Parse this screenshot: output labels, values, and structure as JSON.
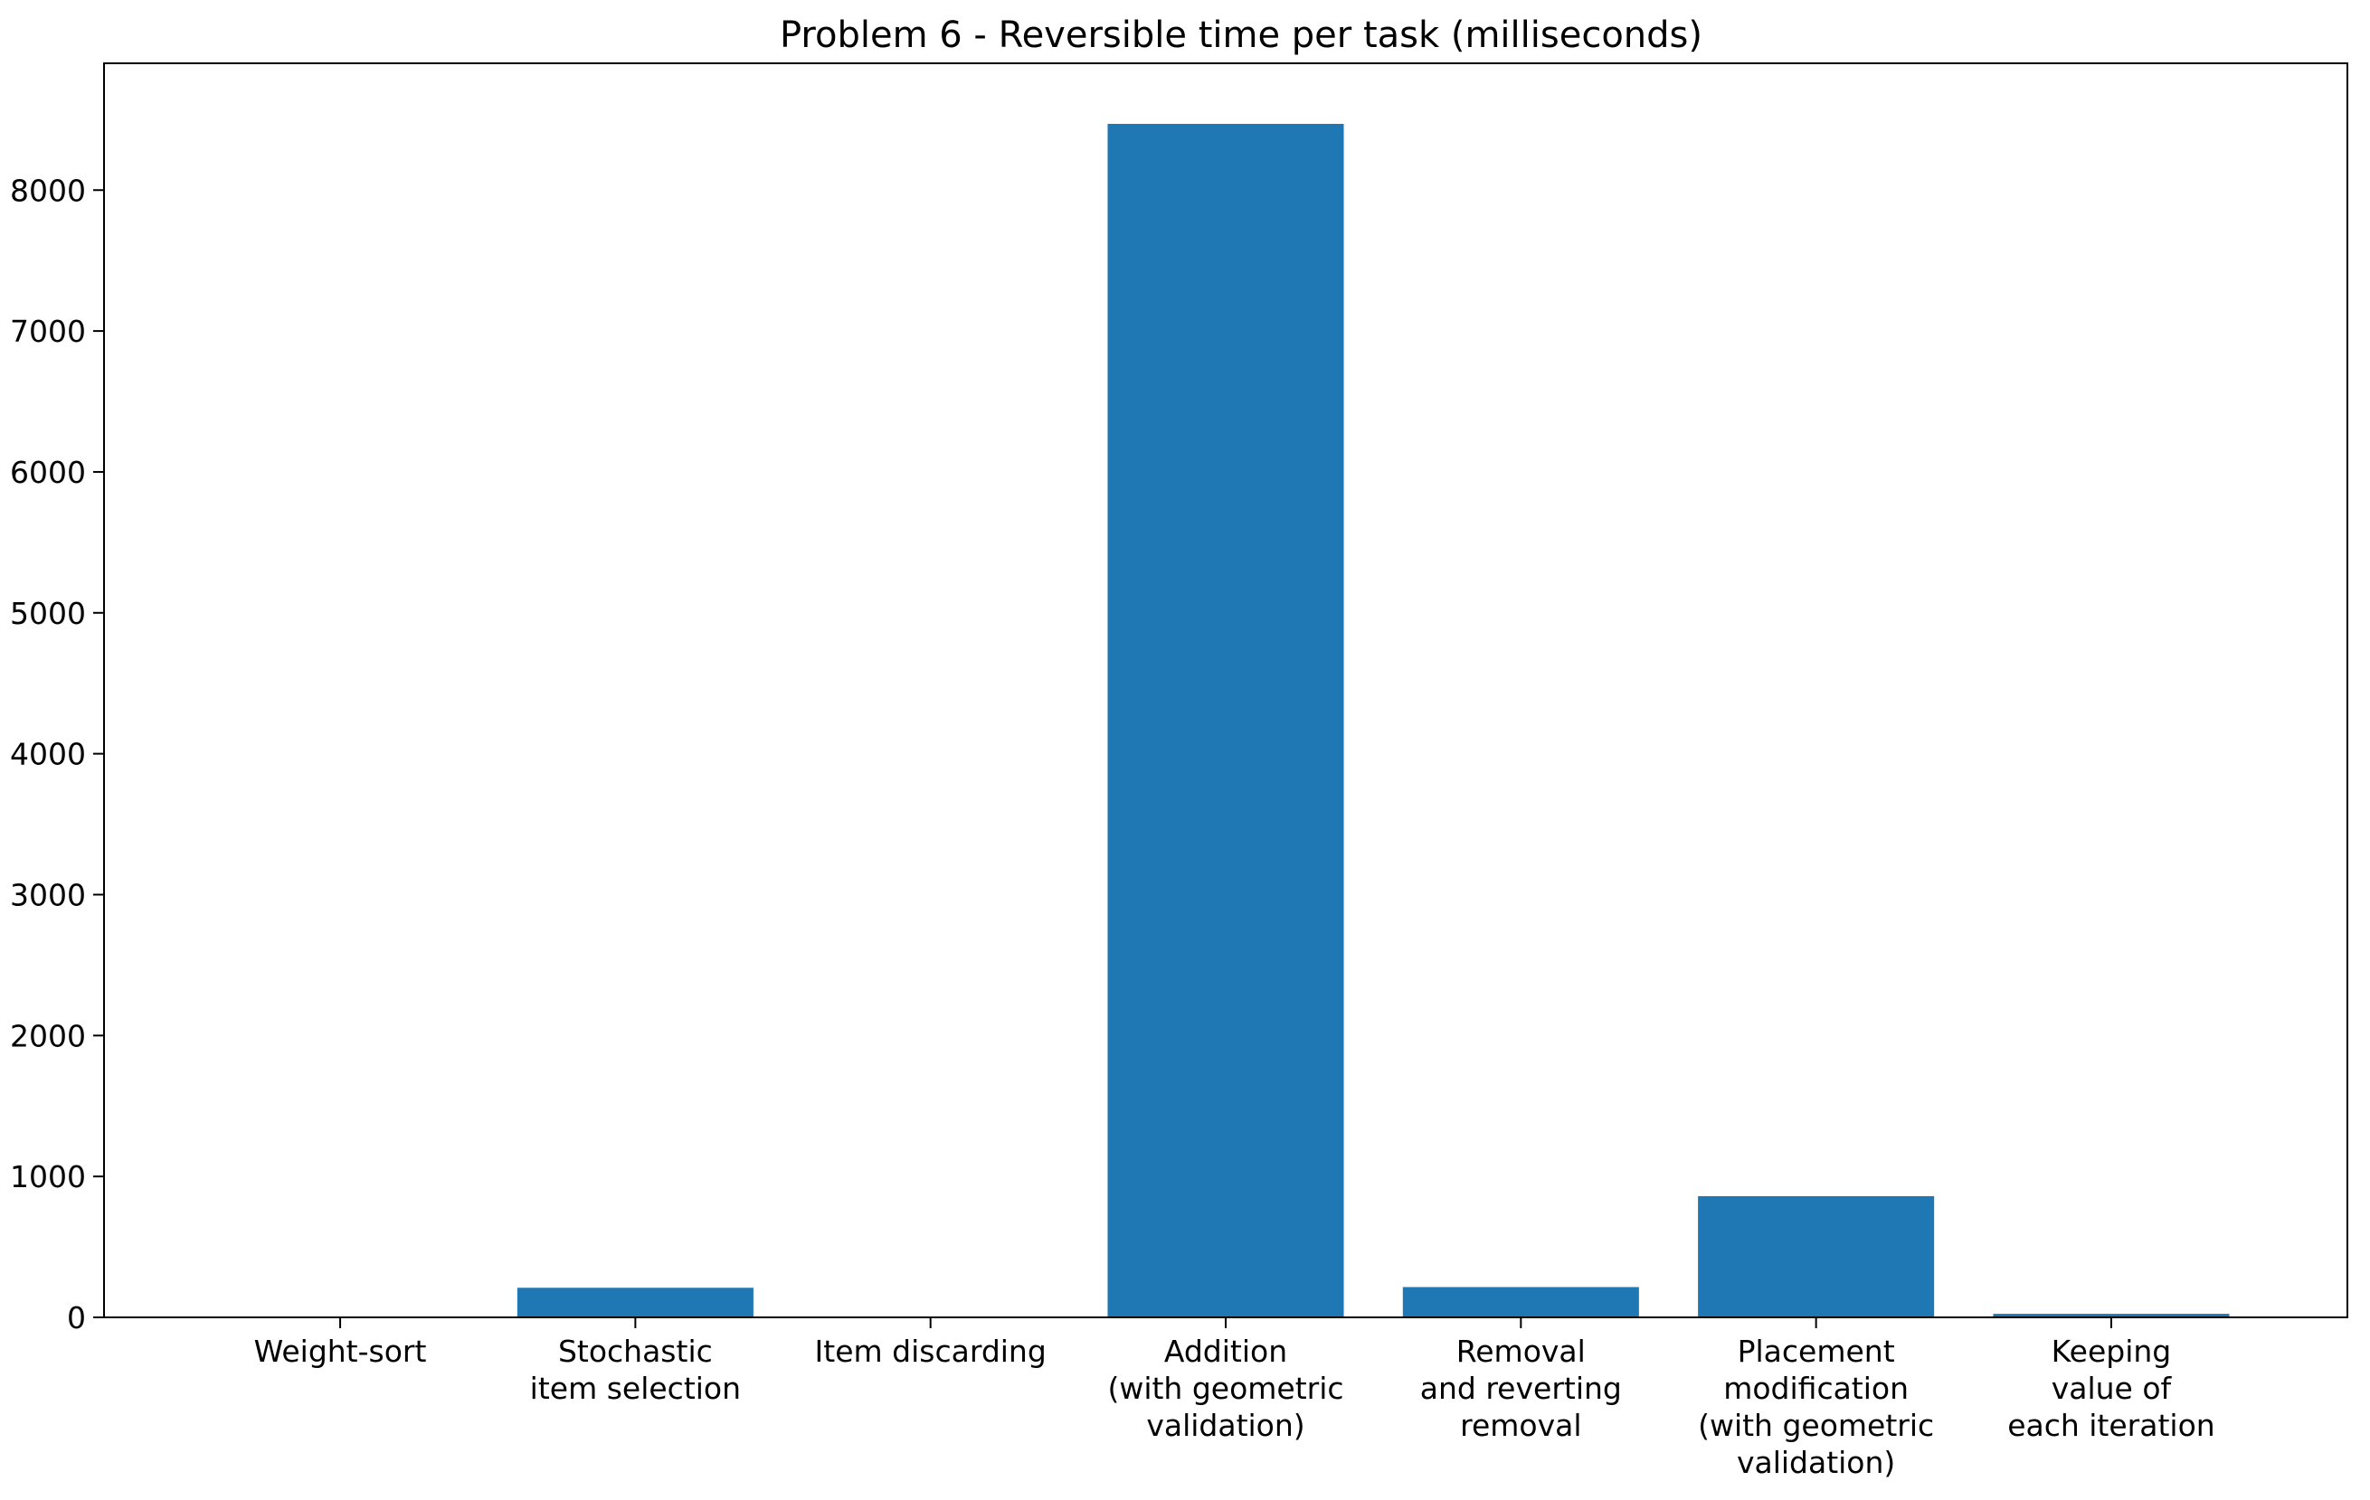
{
  "chart_data": {
    "type": "bar",
    "title": "Problem 6 - Reversible time per task (milliseconds)",
    "xlabel": "",
    "ylabel": "",
    "categories": [
      [
        "Weight-sort"
      ],
      [
        "Stochastic",
        "item selection"
      ],
      [
        "Item discarding"
      ],
      [
        "Addition",
        "(with geometric",
        "validation)"
      ],
      [
        "Removal",
        "and reverting",
        "removal"
      ],
      [
        "Placement",
        "modification",
        "(with geometric",
        "validation)"
      ],
      [
        "Keeping",
        "value of",
        "each iteration"
      ]
    ],
    "values": [
      2,
      210,
      3,
      8470,
      215,
      860,
      25
    ],
    "ylim": [
      0,
      8900
    ],
    "yticks": [
      "0",
      "1000",
      "2000",
      "3000",
      "4000",
      "5000",
      "6000",
      "7000",
      "8000"
    ],
    "bar_color": "#1f77b4",
    "grid": false,
    "legend": "none"
  }
}
